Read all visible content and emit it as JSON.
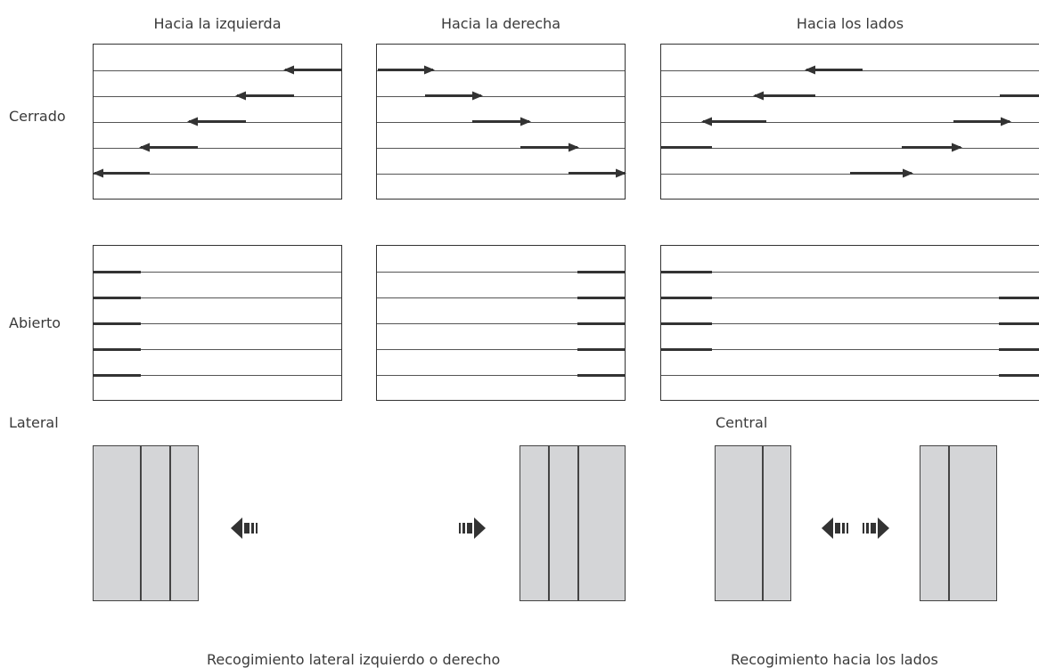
{
  "columns": {
    "left": "Hacia la izquierda",
    "right": "Hacia la derecha",
    "sides": "Hacia los lados"
  },
  "rows": {
    "closed": "Cerrado",
    "open": "Abierto"
  },
  "stack_types": {
    "lateral": "Lateral",
    "central": "Central"
  },
  "captions": {
    "lateral": "Recogimiento lateral izquierdo o derecho",
    "sides": "Recogimiento hacia los lados"
  }
}
